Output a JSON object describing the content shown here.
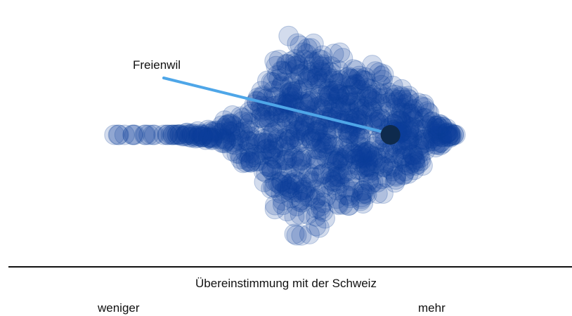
{
  "chart_data": {
    "type": "scatter",
    "subtype": "beeswarm",
    "title": "",
    "xlabel": "Übereinstimmung mit der Schweiz",
    "x_low_label": "weniger",
    "x_high_label": "mehr",
    "xlim": [
      0,
      1
    ],
    "point_color": "#0d3f99",
    "highlight_color": "#0e2a4d",
    "leader_color": "#4ea6e8",
    "highlight": {
      "name": "Freienwil",
      "x": 0.81
    },
    "density_profile": [
      {
        "x": 0.0,
        "half_width": 0.02
      },
      {
        "x": 0.08,
        "half_width": 0.02
      },
      {
        "x": 0.18,
        "half_width": 0.05
      },
      {
        "x": 0.3,
        "half_width": 0.12
      },
      {
        "x": 0.38,
        "half_width": 0.3
      },
      {
        "x": 0.45,
        "half_width": 0.55
      },
      {
        "x": 0.52,
        "half_width": 1.0
      },
      {
        "x": 0.6,
        "half_width": 0.92
      },
      {
        "x": 0.68,
        "half_width": 0.78
      },
      {
        "x": 0.76,
        "half_width": 0.7
      },
      {
        "x": 0.84,
        "half_width": 0.55
      },
      {
        "x": 0.92,
        "half_width": 0.3
      },
      {
        "x": 1.0,
        "half_width": 0.03
      }
    ]
  }
}
